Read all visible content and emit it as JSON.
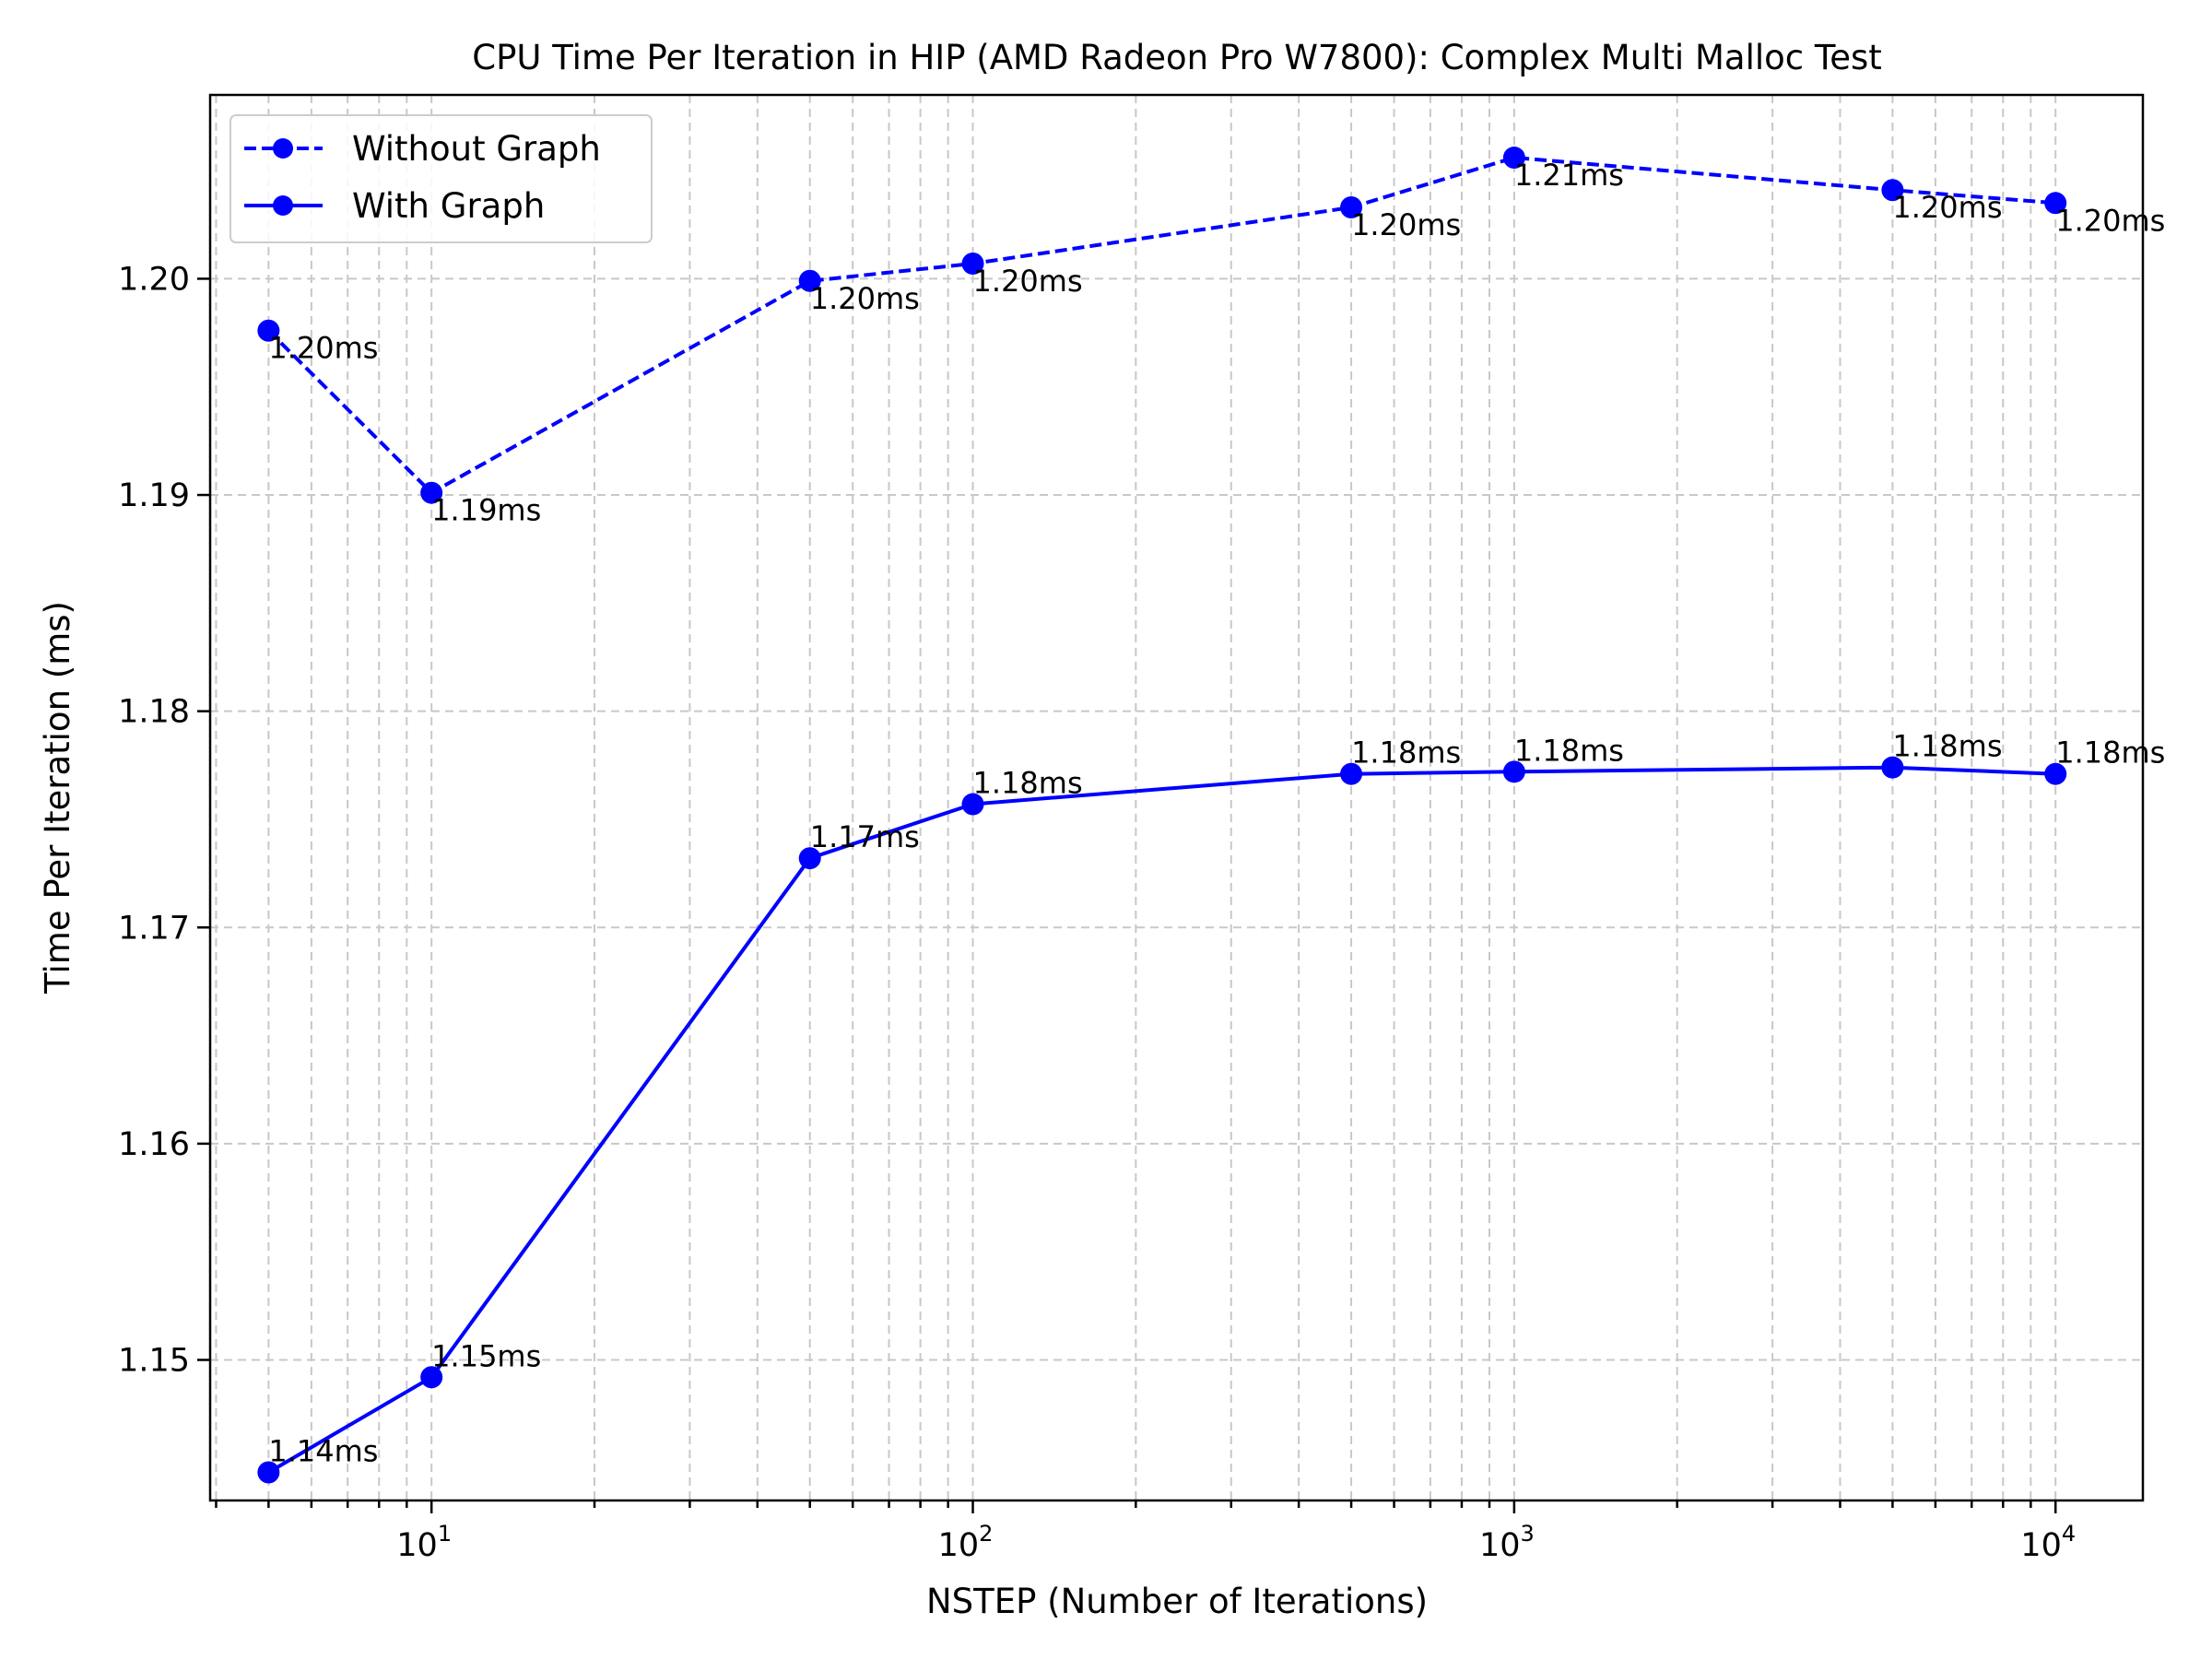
{
  "chart_data": {
    "type": "line",
    "title": "CPU Time Per Iteration in HIP (AMD Radeon Pro W7800): Complex Multi Malloc Test",
    "xlabel": "NSTEP (Number of Iterations)",
    "ylabel": "Time Per Iteration (ms)",
    "x_scale": "log",
    "xlim": [
      3.9,
      14500
    ],
    "ylim": [
      1.1435,
      1.2085
    ],
    "grid": true,
    "legend_position": "top-left",
    "x": [
      5,
      10,
      50,
      100,
      500,
      1000,
      5000,
      10000
    ],
    "x_ticks": [
      {
        "value": 10,
        "base": "10",
        "exp": "1"
      },
      {
        "value": 100,
        "base": "10",
        "exp": "2"
      },
      {
        "value": 1000,
        "base": "10",
        "exp": "3"
      },
      {
        "value": 10000,
        "base": "10",
        "exp": "4"
      }
    ],
    "y_ticks": [
      {
        "value": 1.15,
        "label": "1.15"
      },
      {
        "value": 1.16,
        "label": "1.16"
      },
      {
        "value": 1.17,
        "label": "1.17"
      },
      {
        "value": 1.18,
        "label": "1.18"
      },
      {
        "value": 1.19,
        "label": "1.19"
      },
      {
        "value": 1.2,
        "label": "1.20"
      }
    ],
    "series": [
      {
        "name": "Without Graph",
        "style": "dashed",
        "color": "#0000ff",
        "values": [
          1.1976,
          1.1901,
          1.1999,
          1.2007,
          1.2033,
          1.2056,
          1.2041,
          1.2035
        ],
        "labels": [
          "1.20ms",
          "1.19ms",
          "1.20ms",
          "1.20ms",
          "1.20ms",
          "1.21ms",
          "1.20ms",
          "1.20ms"
        ]
      },
      {
        "name": "With Graph",
        "style": "solid",
        "color": "#0000ff",
        "values": [
          1.1448,
          1.1492,
          1.1732,
          1.1757,
          1.1771,
          1.1772,
          1.1774,
          1.1771
        ],
        "labels": [
          "1.14ms",
          "1.15ms",
          "1.17ms",
          "1.18ms",
          "1.18ms",
          "1.18ms",
          "1.18ms",
          "1.18ms"
        ]
      }
    ]
  }
}
